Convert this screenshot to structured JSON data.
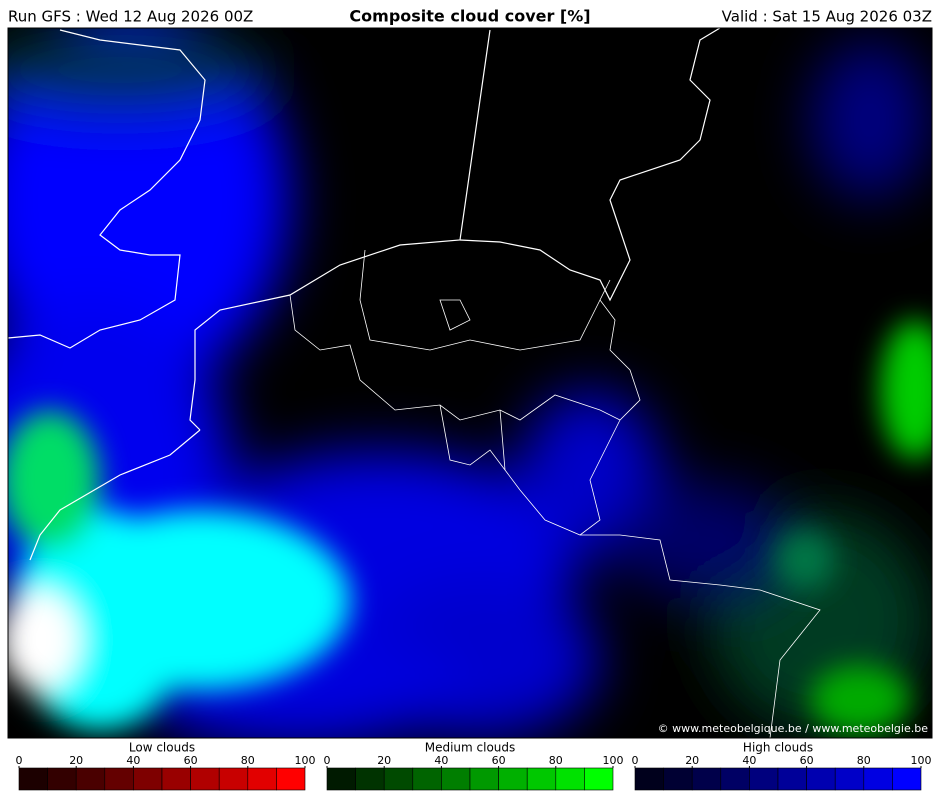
{
  "header": {
    "run": "Run GFS : Wed 12 Aug 2026 00Z",
    "title": "Composite cloud cover [%]",
    "valid": "Valid : Sat 15 Aug 2026 03Z"
  },
  "credit": "© www.meteobelgique.be / www.meteobelgie.be",
  "legends": [
    {
      "title": "Low clouds",
      "ticks": [
        0,
        20,
        40,
        60,
        80,
        100
      ],
      "colors": [
        "#1c0000",
        "#330000",
        "#4a0000",
        "#640000",
        "#7e0000",
        "#990000",
        "#b00000",
        "#c80000",
        "#e20000",
        "#ff0000"
      ]
    },
    {
      "title": "Medium clouds",
      "ticks": [
        0,
        20,
        40,
        60,
        80,
        100
      ],
      "colors": [
        "#001a00",
        "#003300",
        "#004a00",
        "#006400",
        "#007e00",
        "#009900",
        "#00b000",
        "#00c800",
        "#00e200",
        "#00ff00"
      ]
    },
    {
      "title": "High clouds",
      "ticks": [
        0,
        20,
        40,
        60,
        80,
        100
      ],
      "colors": [
        "#00001c",
        "#000033",
        "#00004a",
        "#000064",
        "#00007e",
        "#000099",
        "#0000b0",
        "#0000c8",
        "#0000e2",
        "#0000ff"
      ]
    }
  ]
}
